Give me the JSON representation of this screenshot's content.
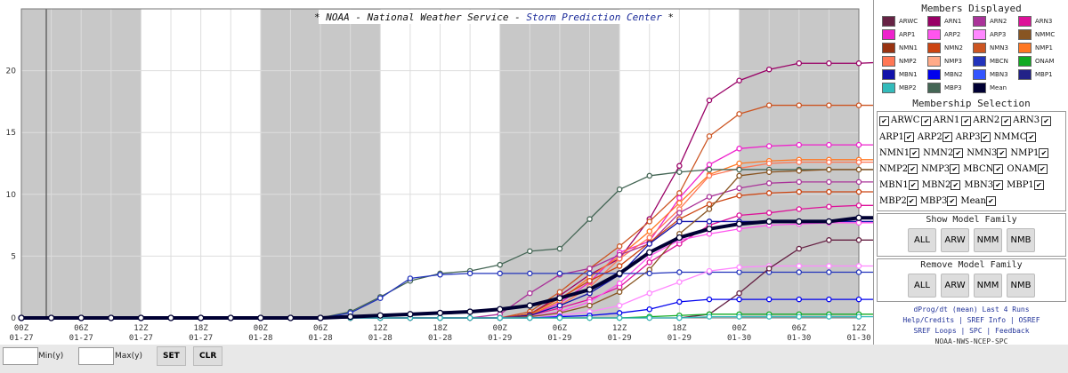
{
  "chart_data": {
    "type": "line",
    "title": "* NOAA - National Weather Service - Storm Prediction Center *",
    "title_part1": "* NOAA - National Weather Service - ",
    "title_part2": "Storm Prediction Center",
    "title_part3": " *",
    "x_ticks": [
      {
        "l1": "00Z",
        "l2": "01-27"
      },
      {
        "l1": "06Z",
        "l2": "01-27"
      },
      {
        "l1": "12Z",
        "l2": "01-27"
      },
      {
        "l1": "18Z",
        "l2": "01-27"
      },
      {
        "l1": "00Z",
        "l2": "01-28"
      },
      {
        "l1": "06Z",
        "l2": "01-28"
      },
      {
        "l1": "12Z",
        "l2": "01-28"
      },
      {
        "l1": "18Z",
        "l2": "01-28"
      },
      {
        "l1": "00Z",
        "l2": "01-29"
      },
      {
        "l1": "06Z",
        "l2": "01-29"
      },
      {
        "l1": "12Z",
        "l2": "01-29"
      },
      {
        "l1": "18Z",
        "l2": "01-29"
      },
      {
        "l1": "00Z",
        "l2": "01-30"
      },
      {
        "l1": "06Z",
        "l2": "01-30"
      },
      {
        "l1": "12Z",
        "l2": "01-30"
      }
    ],
    "y_ticks": [
      0,
      5,
      10,
      15,
      20
    ],
    "ylim": [
      0,
      25
    ],
    "xlim_hours": [
      0,
      84
    ],
    "series": [
      {
        "name": "ARN1",
        "color": "#990066",
        "values": [
          0,
          0,
          0,
          0,
          0,
          0,
          0,
          0,
          0,
          0,
          0,
          0,
          0,
          0,
          0,
          0,
          0,
          0.3,
          1.8,
          3.5,
          4.8,
          8,
          12.3,
          17.6,
          19.2,
          20.1,
          20.6,
          20.6,
          20.6,
          20.7,
          20.8
        ]
      },
      {
        "name": "NMN3",
        "color": "#cc5522",
        "values": [
          0,
          0,
          0,
          0,
          0,
          0,
          0,
          0,
          0,
          0,
          0,
          0,
          0,
          0,
          0,
          0,
          0,
          0.5,
          2.1,
          4,
          5.8,
          7.8,
          10.1,
          14.7,
          16.5,
          17.2,
          17.2,
          17.2,
          17.2,
          17.2,
          17.2
        ]
      },
      {
        "name": "ARP1",
        "color": "#ee22cc",
        "values": [
          0,
          0,
          0,
          0,
          0,
          0,
          0,
          0,
          0,
          0,
          0,
          0,
          0,
          0,
          0,
          0,
          0,
          0.2,
          1.2,
          2.9,
          5.3,
          6.2,
          9.7,
          12.4,
          13.7,
          13.9,
          14,
          14,
          14,
          14,
          14.1
        ]
      },
      {
        "name": "NMP1",
        "color": "#ff7722",
        "values": [
          0,
          0,
          0,
          0,
          0,
          0,
          0,
          0,
          0,
          0,
          0,
          0,
          0,
          0,
          0,
          0,
          0,
          0.2,
          1.4,
          3.3,
          5,
          7,
          9.3,
          11.6,
          12.5,
          12.7,
          12.8,
          12.8,
          12.8,
          12.8,
          12.8
        ]
      },
      {
        "name": "NMP2",
        "color": "#ff7755",
        "values": [
          0,
          0,
          0,
          0,
          0,
          0,
          0,
          0,
          0,
          0,
          0,
          0,
          0,
          0,
          0,
          0,
          0,
          0.2,
          1,
          2.5,
          4.8,
          6.5,
          8.8,
          11.5,
          12.1,
          12.5,
          12.6,
          12.6,
          12.6,
          12.6,
          12.6
        ]
      },
      {
        "name": "MBP3",
        "color": "#446655",
        "values": [
          0,
          0,
          0,
          0,
          0,
          0,
          0,
          0,
          0,
          0,
          0,
          0.5,
          1.7,
          3,
          3.6,
          3.8,
          4.3,
          5.4,
          5.6,
          8,
          10.4,
          11.5,
          11.8,
          12,
          12,
          12,
          12,
          12,
          12,
          12,
          12
        ]
      },
      {
        "name": "ARN2",
        "color": "#aa3399",
        "values": [
          0,
          0,
          0,
          0,
          0,
          0,
          0,
          0,
          0,
          0,
          0,
          0,
          0,
          0,
          0,
          0,
          0.3,
          2,
          3.5,
          4,
          5.1,
          6,
          8.5,
          9.8,
          10.5,
          10.9,
          11,
          11,
          11,
          11,
          11
        ]
      },
      {
        "name": "NMN2",
        "color": "#cc4411",
        "values": [
          0,
          0,
          0,
          0,
          0,
          0,
          0,
          0,
          0,
          0,
          0,
          0,
          0,
          0,
          0,
          0,
          0,
          0.3,
          1.6,
          3,
          4.2,
          6.1,
          8,
          9.2,
          9.9,
          10.1,
          10.2,
          10.2,
          10.2,
          10.2,
          10.2
        ]
      },
      {
        "name": "ARN3",
        "color": "#dd1199",
        "values": [
          0,
          0,
          0,
          0,
          0,
          0,
          0,
          0,
          0,
          0,
          0,
          0,
          0,
          0,
          0,
          0,
          0,
          0.2,
          0.8,
          1.5,
          2.5,
          4.5,
          6,
          7.5,
          8.3,
          8.5,
          8.8,
          9,
          9.1,
          9.1,
          9.1
        ]
      },
      {
        "name": "MBN1",
        "color": "#1111aa",
        "values": [
          0,
          0,
          0,
          0,
          0,
          0,
          0,
          0,
          0,
          0,
          0,
          0,
          0,
          0,
          0,
          0,
          0,
          0.2,
          1,
          2,
          3.5,
          6,
          7.8,
          7.8,
          7.8,
          7.8,
          7.8,
          7.8,
          7.8,
          7.8,
          7.8
        ]
      },
      {
        "name": "ARP2",
        "color": "#ff55ee",
        "values": [
          0,
          0,
          0,
          0,
          0,
          0,
          0,
          0,
          0,
          0,
          0,
          0,
          0,
          0,
          0,
          0,
          0,
          0.1,
          0.5,
          1.3,
          2.8,
          5,
          6.3,
          6.8,
          7.2,
          7.5,
          7.6,
          7.7,
          7.7,
          7.7,
          7.7
        ]
      },
      {
        "name": "NMMC",
        "color": "#885522",
        "values": [
          0,
          0,
          0,
          0,
          0,
          0,
          0,
          0,
          0,
          0,
          0,
          0,
          0,
          0,
          0,
          0,
          0,
          0.1,
          0.4,
          1,
          2.1,
          3.9,
          6.8,
          8.8,
          11.5,
          11.8,
          11.9,
          12,
          12,
          12,
          12
        ]
      },
      {
        "name": "MBCN",
        "color": "#2233bb",
        "values": [
          0,
          0,
          0,
          0,
          0,
          0,
          0,
          0,
          0,
          0,
          0,
          0.4,
          1.6,
          3.2,
          3.5,
          3.6,
          3.6,
          3.6,
          3.6,
          3.6,
          3.6,
          3.6,
          3.7,
          3.7,
          3.7,
          3.7,
          3.7,
          3.7,
          3.7,
          3.7,
          3.7
        ]
      },
      {
        "name": "ARP3",
        "color": "#ff88ff",
        "values": [
          0,
          0,
          0,
          0,
          0,
          0,
          0,
          0,
          0,
          0,
          0,
          0,
          0,
          0,
          0,
          0,
          0,
          0,
          0.2,
          0.5,
          1,
          2,
          2.9,
          3.8,
          4.1,
          4.2,
          4.2,
          4.2,
          4.2,
          4.2,
          4.2
        ]
      },
      {
        "name": "ARWC",
        "color": "#662244",
        "values": [
          0,
          0,
          0,
          0,
          0,
          0,
          0,
          0,
          0,
          0,
          0,
          0,
          0,
          0,
          0,
          0,
          0,
          0,
          0,
          0,
          0,
          0,
          0,
          0.3,
          2,
          4,
          5.6,
          6.3,
          6.3,
          6.3,
          6.3
        ]
      },
      {
        "name": "MBN2",
        "color": "#0000ee",
        "values": [
          0,
          0,
          0,
          0,
          0,
          0,
          0,
          0,
          0,
          0,
          0,
          0,
          0,
          0,
          0,
          0,
          0,
          0,
          0.1,
          0.2,
          0.4,
          0.7,
          1.3,
          1.5,
          1.5,
          1.5,
          1.5,
          1.5,
          1.5,
          1.5,
          1.5
        ]
      },
      {
        "name": "ONAM",
        "color": "#11aa22",
        "values": [
          0,
          0,
          0,
          0,
          0,
          0,
          0,
          0,
          0,
          0,
          0,
          0,
          0,
          0,
          0,
          0,
          0,
          0,
          0,
          0,
          0,
          0.1,
          0.2,
          0.3,
          0.3,
          0.3,
          0.3,
          0.3,
          0.3,
          0.3,
          0.3
        ]
      },
      {
        "name": "MBP2",
        "color": "#33bbbb",
        "values": [
          0,
          0,
          0,
          0,
          0,
          0,
          0,
          0,
          0,
          0,
          0,
          0,
          0,
          0,
          0,
          0,
          0,
          0,
          0,
          0,
          0,
          0,
          0,
          0.1,
          0.1,
          0.1,
          0.1,
          0.1,
          0.1,
          0.1,
          0.1
        ]
      },
      {
        "name": "Mean",
        "color": "#000033",
        "bold": true,
        "values": [
          0,
          0,
          0,
          0,
          0,
          0,
          0,
          0,
          0,
          0,
          0,
          0.1,
          0.2,
          0.3,
          0.4,
          0.5,
          0.7,
          1,
          1.6,
          2.3,
          3.6,
          5.3,
          6.5,
          7.2,
          7.6,
          7.8,
          7.8,
          7.8,
          8.1,
          8.1,
          8.2
        ]
      }
    ]
  },
  "members_title": "Members Displayed",
  "members": [
    {
      "name": "ARWC",
      "color": "#662244"
    },
    {
      "name": "ARN1",
      "color": "#990066"
    },
    {
      "name": "ARN2",
      "color": "#aa3399"
    },
    {
      "name": "ARN3",
      "color": "#dd1199"
    },
    {
      "name": "ARP1",
      "color": "#ee22cc"
    },
    {
      "name": "ARP2",
      "color": "#ff55ee"
    },
    {
      "name": "ARP3",
      "color": "#ff88ff"
    },
    {
      "name": "NMMC",
      "color": "#885522"
    },
    {
      "name": "NMN1",
      "color": "#993311"
    },
    {
      "name": "NMN2",
      "color": "#cc4411"
    },
    {
      "name": "NMN3",
      "color": "#cc5522"
    },
    {
      "name": "NMP1",
      "color": "#ff7722"
    },
    {
      "name": "NMP2",
      "color": "#ff7755"
    },
    {
      "name": "NMP3",
      "color": "#ffaa88"
    },
    {
      "name": "MBCN",
      "color": "#2233bb"
    },
    {
      "name": "ONAM",
      "color": "#11aa22"
    },
    {
      "name": "MBN1",
      "color": "#1111aa"
    },
    {
      "name": "MBN2",
      "color": "#0000ee"
    },
    {
      "name": "MBN3",
      "color": "#3355ff"
    },
    {
      "name": "MBP1",
      "color": "#222288"
    },
    {
      "name": "MBP2",
      "color": "#33bbbb"
    },
    {
      "name": "MBP3",
      "color": "#446655"
    },
    {
      "name": "Mean",
      "color": "#000033"
    }
  ],
  "membership_title": "Membership Selection",
  "selection_rows": [
    [
      "ARWC",
      "ARN1",
      "ARN2",
      "ARN3"
    ],
    [
      "ARP1",
      "ARP2",
      "ARP3",
      "NMMC"
    ],
    [
      "NMN1",
      "NMN2",
      "NMN3",
      "NMP1"
    ],
    [
      "NMP2",
      "NMP3",
      "MBCN",
      "ONAM"
    ],
    [
      "MBN1",
      "MBN2",
      "MBN3",
      "MBP1"
    ],
    [
      "MBP2",
      "MBP3",
      "Mean"
    ]
  ],
  "show_title": "Show Model Family",
  "remove_title": "Remove Model Family",
  "family_buttons": [
    "ALL",
    "ARW",
    "NMM",
    "NMB"
  ],
  "links": {
    "l1": "dProg/dt (mean) Last 4 Runs",
    "help": "Help/Credits",
    "sref_info": "SREF Info",
    "osref": "OSREF",
    "loops": "SREF Loops",
    "spc": "SPC",
    "feedback": "Feedback",
    "footer": "NOAA-NWS-NCEP-SPC"
  },
  "footer": {
    "min_label": "Min(y)",
    "max_label": "Max(y)",
    "set": "SET",
    "clr": "CLR"
  },
  "check_glyph": "✔"
}
